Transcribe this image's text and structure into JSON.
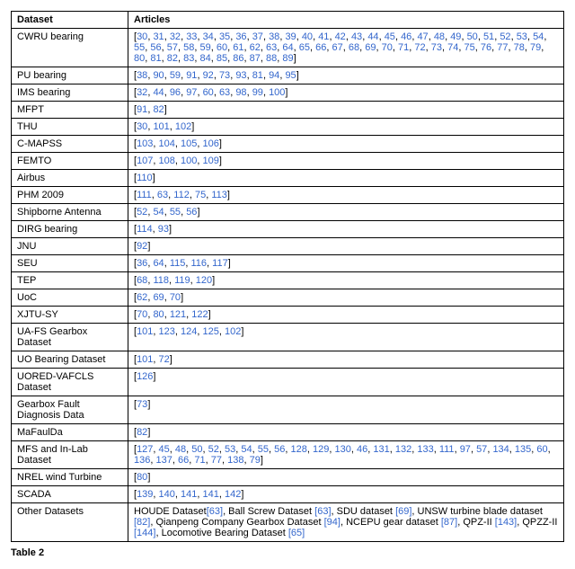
{
  "table": {
    "headers": [
      "Dataset",
      "Articles"
    ],
    "caption": "Table 2",
    "cite_color": "#3366cc",
    "rows": [
      {
        "dataset": "CWRU bearing",
        "articles": "[30, 31, 32, 33, 34, 35, 36, 37, 38, 39, 40, 41, 42, 43, 44, 45, 46, 47, 48, 49, 50, 51, 52, 53, 54, 55, 56, 57, 58, 59, 60, 61, 62, 63, 64, 65, 66, 67, 68, 69, 70, 71, 72, 73, 74, 75, 76, 77, 78, 79, 80, 81, 82, 83, 84, 85, 86, 87, 88, 89]"
      },
      {
        "dataset": "PU bearing",
        "articles": "[38, 90, 59, 91, 92, 73, 93, 81, 94, 95]"
      },
      {
        "dataset": "IMS bearing",
        "articles": "[32, 44, 96, 97, 60, 63, 98, 99, 100]"
      },
      {
        "dataset": "MFPT",
        "articles": "[91, 82]"
      },
      {
        "dataset": "THU",
        "articles": "[30, 101, 102]"
      },
      {
        "dataset": "C-MAPSS",
        "articles": "[103, 104, 105, 106]"
      },
      {
        "dataset": "FEMTO",
        "articles": "[107, 108, 100, 109]"
      },
      {
        "dataset": "Airbus",
        "articles": "[110]"
      },
      {
        "dataset": "PHM 2009",
        "articles": "[111, 63, 112, 75, 113]"
      },
      {
        "dataset": "Shipborne Antenna",
        "articles": "[52, 54, 55, 56]"
      },
      {
        "dataset": "DIRG bearing",
        "articles": "[114, 93]"
      },
      {
        "dataset": "JNU",
        "articles": "[92]"
      },
      {
        "dataset": "SEU",
        "articles": "[36, 64, 115, 116, 117]"
      },
      {
        "dataset": "TEP",
        "articles": "[68, 118, 119, 120]"
      },
      {
        "dataset": "UoC",
        "articles": "[62, 69, 70]"
      },
      {
        "dataset": "XJTU-SY",
        "articles": "[70, 80, 121, 122]"
      },
      {
        "dataset": "UA-FS Gearbox Dataset",
        "articles": "[101, 123, 124, 125, 102]"
      },
      {
        "dataset": "UO Bearing Dataset",
        "articles": "[101, 72]"
      },
      {
        "dataset": "UORED-VAFCLS Dataset",
        "articles": "[126]"
      },
      {
        "dataset": "Gearbox Fault Diagnosis Data",
        "articles": "[73]"
      },
      {
        "dataset": "MaFaulDa",
        "articles": "[82]"
      },
      {
        "dataset": "MFS and In-Lab Dataset",
        "articles": "[127, 45, 48, 50, 52, 53, 54, 55, 56, 128, 129, 130, 46, 131, 132, 133, 111, 97, 57, 134, 135, 60, 136, 137, 66, 71, 77, 138, 79]"
      },
      {
        "dataset": "NREL wind Turbine",
        "articles": "[80]"
      },
      {
        "dataset": "SCADA",
        "articles": "[139, 140, 141, 141, 142]"
      }
    ],
    "other": {
      "dataset": "Other Datasets",
      "parts": [
        {
          "text": "HOUDE Dataset",
          "cite": "[63]"
        },
        {
          "text": ", Ball Screw Dataset ",
          "cite": "[63]"
        },
        {
          "text": ", SDU dataset ",
          "cite": "[69]"
        },
        {
          "text": ", UNSW turbine blade dataset ",
          "cite": "[82]"
        },
        {
          "text": ", Qianpeng Company Gearbox Dataset ",
          "cite": "[94]"
        },
        {
          "text": ", NCEPU gear dataset ",
          "cite": "[87]"
        },
        {
          "text": ", QPZ-II ",
          "cite": "[143]"
        },
        {
          "text": ", QPZZ-II ",
          "cite": "[144]"
        },
        {
          "text": ", Locomotive Bearing Dataset ",
          "cite": "[65]"
        }
      ]
    }
  }
}
